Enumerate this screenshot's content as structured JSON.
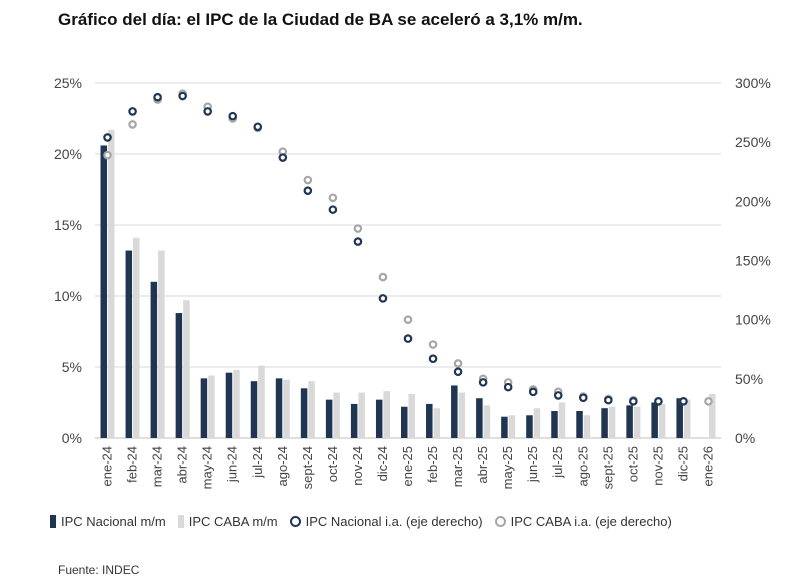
{
  "title": "Gráfico del día: el IPC de la Ciudad de BA se aceleró a 3,1% m/m.",
  "source": "Fuente: INDEC",
  "colors": {
    "nacional_mm": "#1f3552",
    "caba_mm": "#d9d9d9",
    "nacional_ia": "#1f3552",
    "caba_ia": "#a6a6a6",
    "grid": "#d9d9d9",
    "axis_text": "#444444"
  },
  "legend": {
    "nacional_mm": "IPC Nacional m/m",
    "caba_mm": "IPC CABA m/m",
    "nacional_ia": "IPC Nacional i.a. (eje derecho)",
    "caba_ia": "IPC CABA i.a. (eje derecho)"
  },
  "chart_data": {
    "type": "bar",
    "categories": [
      "ene-24",
      "feb-24",
      "mar-24",
      "abr-24",
      "may-24",
      "jun-24",
      "jul-24",
      "ago-24",
      "sept-24",
      "oct-24",
      "nov-24",
      "dic-24",
      "ene-25",
      "feb-25",
      "mar-25",
      "abr-25",
      "may-25",
      "jun-25",
      "jul-25",
      "ago-25",
      "sept-25",
      "oct-25",
      "nov-25",
      "dic-25",
      "ene-26"
    ],
    "left_axis": {
      "ylim": [
        0,
        25
      ],
      "ticks": [
        "0%",
        "5%",
        "10%",
        "15%",
        "20%",
        "25%"
      ]
    },
    "right_axis": {
      "ylim": [
        0,
        300
      ],
      "ticks": [
        "0%",
        "50%",
        "100%",
        "150%",
        "200%",
        "250%",
        "300%"
      ]
    },
    "grid": true,
    "legend_position": "bottom",
    "series": [
      {
        "name": "IPC Nacional m/m",
        "kind": "bar",
        "axis": "left",
        "values": [
          20.6,
          13.2,
          11.0,
          8.8,
          4.2,
          4.6,
          4.0,
          4.2,
          3.5,
          2.7,
          2.4,
          2.7,
          2.2,
          2.4,
          3.7,
          2.8,
          1.5,
          1.6,
          1.9,
          1.9,
          2.1,
          2.3,
          2.5,
          2.8,
          null
        ]
      },
      {
        "name": "IPC CABA m/m",
        "kind": "bar",
        "axis": "left",
        "values": [
          21.7,
          14.1,
          13.2,
          9.7,
          4.4,
          4.8,
          5.1,
          4.1,
          4.0,
          3.2,
          3.2,
          3.3,
          3.1,
          2.1,
          3.2,
          2.3,
          1.6,
          2.1,
          2.5,
          1.6,
          2.2,
          2.2,
          2.4,
          2.7,
          3.1
        ]
      },
      {
        "name": "IPC Nacional i.a. (eje derecho)",
        "kind": "scatter",
        "axis": "right",
        "values": [
          254,
          276,
          288,
          289,
          276,
          272,
          263,
          237,
          209,
          193,
          166,
          118,
          84,
          67,
          56,
          47,
          43,
          39,
          36,
          34,
          32,
          31,
          31,
          31,
          null
        ]
      },
      {
        "name": "IPC CABA i.a. (eje derecho)",
        "kind": "scatter",
        "axis": "right",
        "values": [
          239,
          265,
          286,
          291,
          280,
          270,
          262,
          242,
          218,
          203,
          177,
          136,
          100,
          79,
          63,
          50,
          47,
          41,
          39,
          35,
          33,
          32,
          31,
          31,
          31
        ]
      }
    ]
  }
}
